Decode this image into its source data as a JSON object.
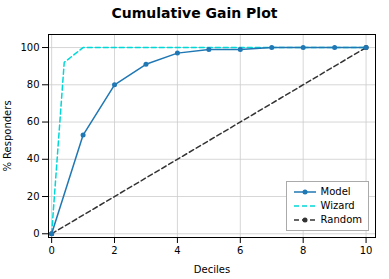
{
  "chart_data": {
    "type": "line",
    "title": "Cumulative Gain Plot",
    "xlabel": "Deciles",
    "ylabel": "% Responders",
    "series": [
      {
        "name": "Model",
        "color": "#1f77b4",
        "line_style": "solid",
        "marker": "circle",
        "x": [
          0,
          1,
          2,
          3,
          4,
          5,
          6,
          7,
          8,
          9,
          10
        ],
        "values": [
          0,
          53,
          80,
          91,
          97,
          99,
          99,
          100,
          100,
          100,
          100
        ]
      },
      {
        "name": "Wizard",
        "color": "#00d8d8",
        "line_style": "dashed",
        "marker": "none",
        "x": [
          0,
          0.4,
          1.0,
          2,
          3,
          4,
          5,
          6,
          7,
          8,
          9,
          10
        ],
        "values": [
          0,
          92,
          100,
          100,
          100,
          100,
          100,
          100,
          100,
          100,
          100,
          100
        ]
      },
      {
        "name": "Random",
        "color": "#333333",
        "line_style": "dashed",
        "marker": "circle",
        "x": [
          0,
          10
        ],
        "values": [
          0,
          100
        ]
      }
    ],
    "xlim": [
      -0.1,
      10.3
    ],
    "ylim": [
      -2,
      107
    ],
    "xticks": [
      0,
      2,
      4,
      6,
      8,
      10
    ],
    "yticks": [
      0,
      20,
      40,
      60,
      80,
      100
    ],
    "grid": true,
    "legend": "lower right"
  }
}
